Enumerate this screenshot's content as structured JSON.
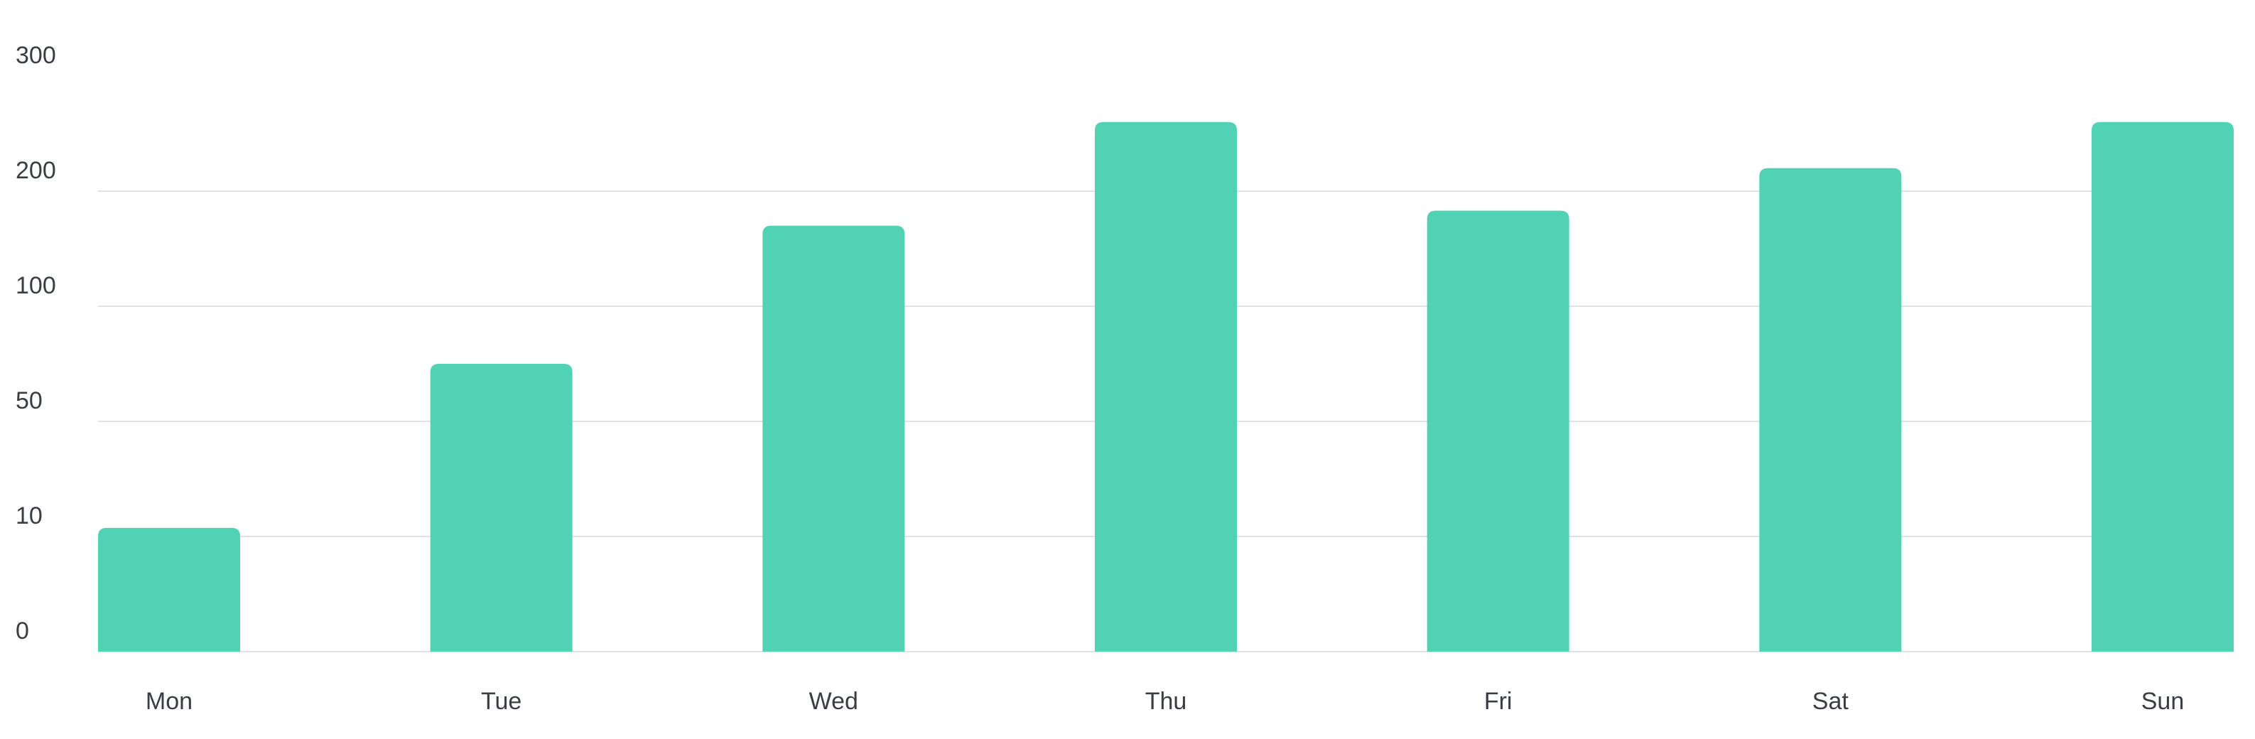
{
  "chart_data": {
    "type": "bar",
    "categories": [
      "Mon",
      "Tue",
      "Wed",
      "Thu",
      "Fri",
      "Sat",
      "Sun"
    ],
    "values": [
      13,
      75,
      170,
      260,
      183,
      220,
      260
    ],
    "y_ticks": [
      {
        "label": "0",
        "value": 0
      },
      {
        "label": "10",
        "value": 10
      },
      {
        "label": "50",
        "value": 50
      },
      {
        "label": "100",
        "value": 100
      },
      {
        "label": "200",
        "value": 200
      },
      {
        "label": "300",
        "value": 300
      }
    ],
    "ylim": [
      0,
      300
    ],
    "scale": "non-linear (evenly spaced ticks)",
    "grid": true,
    "bar_color": "#51d2b4",
    "grid_color": "#e1e2e5",
    "text_color": "#3b3d45"
  }
}
